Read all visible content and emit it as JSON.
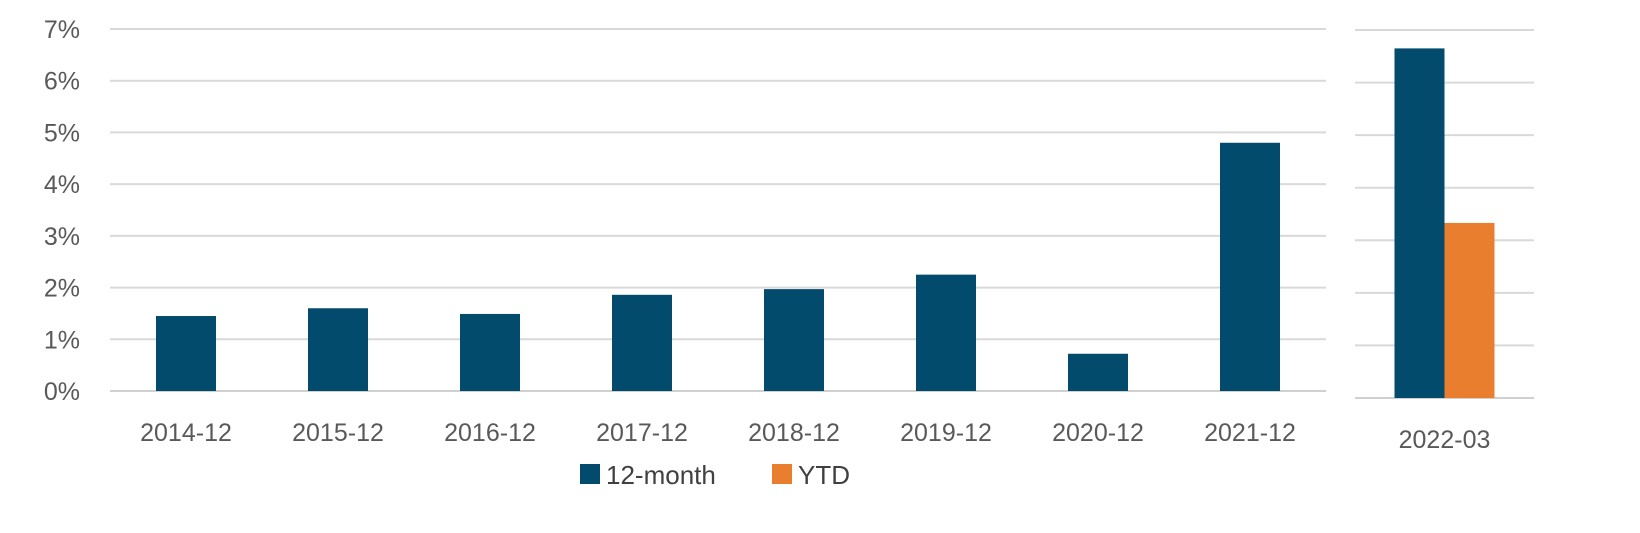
{
  "chart_data": {
    "type": "bar",
    "y_axis": {
      "ticks": [
        "0%",
        "1%",
        "2%",
        "3%",
        "4%",
        "5%",
        "6%",
        "7%"
      ],
      "ylim": [
        0,
        7
      ],
      "unit": "%"
    },
    "grid": true,
    "legend_position": "bottom",
    "series": [
      {
        "name": "12-month",
        "color": "#034B6C"
      },
      {
        "name": "YTD",
        "color": "#E87E2E"
      }
    ],
    "panels": [
      {
        "categories": [
          "2014-12",
          "2015-12",
          "2016-12",
          "2017-12",
          "2018-12",
          "2019-12",
          "2020-12",
          "2021-12"
        ],
        "series_values": {
          "12-month": [
            1.45,
            1.6,
            1.49,
            1.86,
            1.97,
            2.25,
            0.72,
            4.8
          ]
        }
      },
      {
        "categories": [
          "2022-03"
        ],
        "series_values": {
          "12-month": [
            6.65
          ],
          "YTD": [
            3.33
          ]
        }
      }
    ]
  }
}
